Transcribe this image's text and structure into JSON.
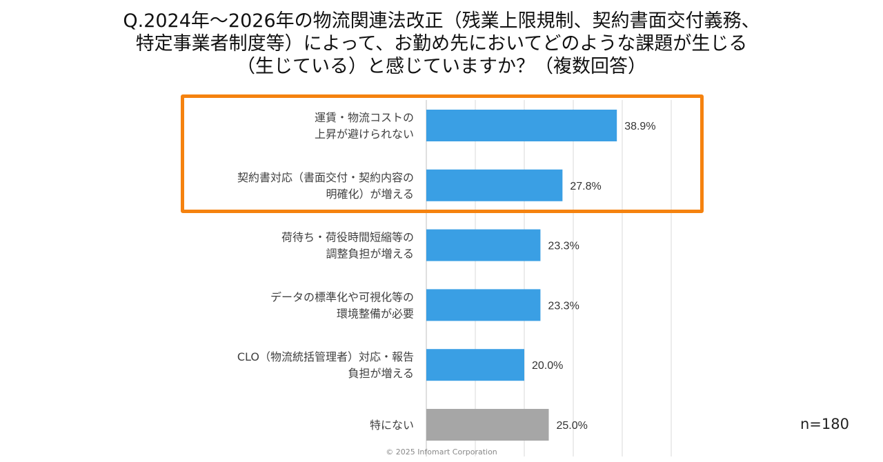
{
  "title_lines": [
    "Q.2024年～2026年の物流関連法改正（残業上限規制、契約書面交付義務、",
    "特定事業者制度等）によって、お勤め先においてどのような課題が生じる",
    "（生じている）と感じていますか？（複数回答）"
  ],
  "sample_size": "n=180",
  "copyright": "© 2025 Infomart Corporation",
  "colors": {
    "bar": "#3a9fe4",
    "bar_other": "#a6a6a6",
    "highlight": "#f5820f",
    "grid": "#d9d9d9"
  },
  "chart_data": {
    "type": "bar",
    "orientation": "horizontal",
    "categories": [
      [
        "運賃・物流コストの",
        "上昇が避けられない"
      ],
      [
        "契約書対応（書面交付・契約内容の",
        "明確化）が増える"
      ],
      [
        "荷待ち・荷役時間短縮等の",
        "調整負担が増える"
      ],
      [
        "データの標準化や可視化等の",
        "環境整備が必要"
      ],
      [
        "CLO（物流統括管理者）対応・報告",
        "負担が増える"
      ],
      [
        "特にない"
      ]
    ],
    "values": [
      38.9,
      27.8,
      23.3,
      23.3,
      20.0,
      25.0
    ],
    "data_labels": [
      "38.9%",
      "27.8%",
      "23.3%",
      "23.3%",
      "20.0%",
      "25.0%"
    ],
    "unit": "%",
    "xlim": [
      0,
      50
    ],
    "grid_step": 10,
    "grid": true,
    "highlighted_categories": [
      0,
      1
    ]
  }
}
